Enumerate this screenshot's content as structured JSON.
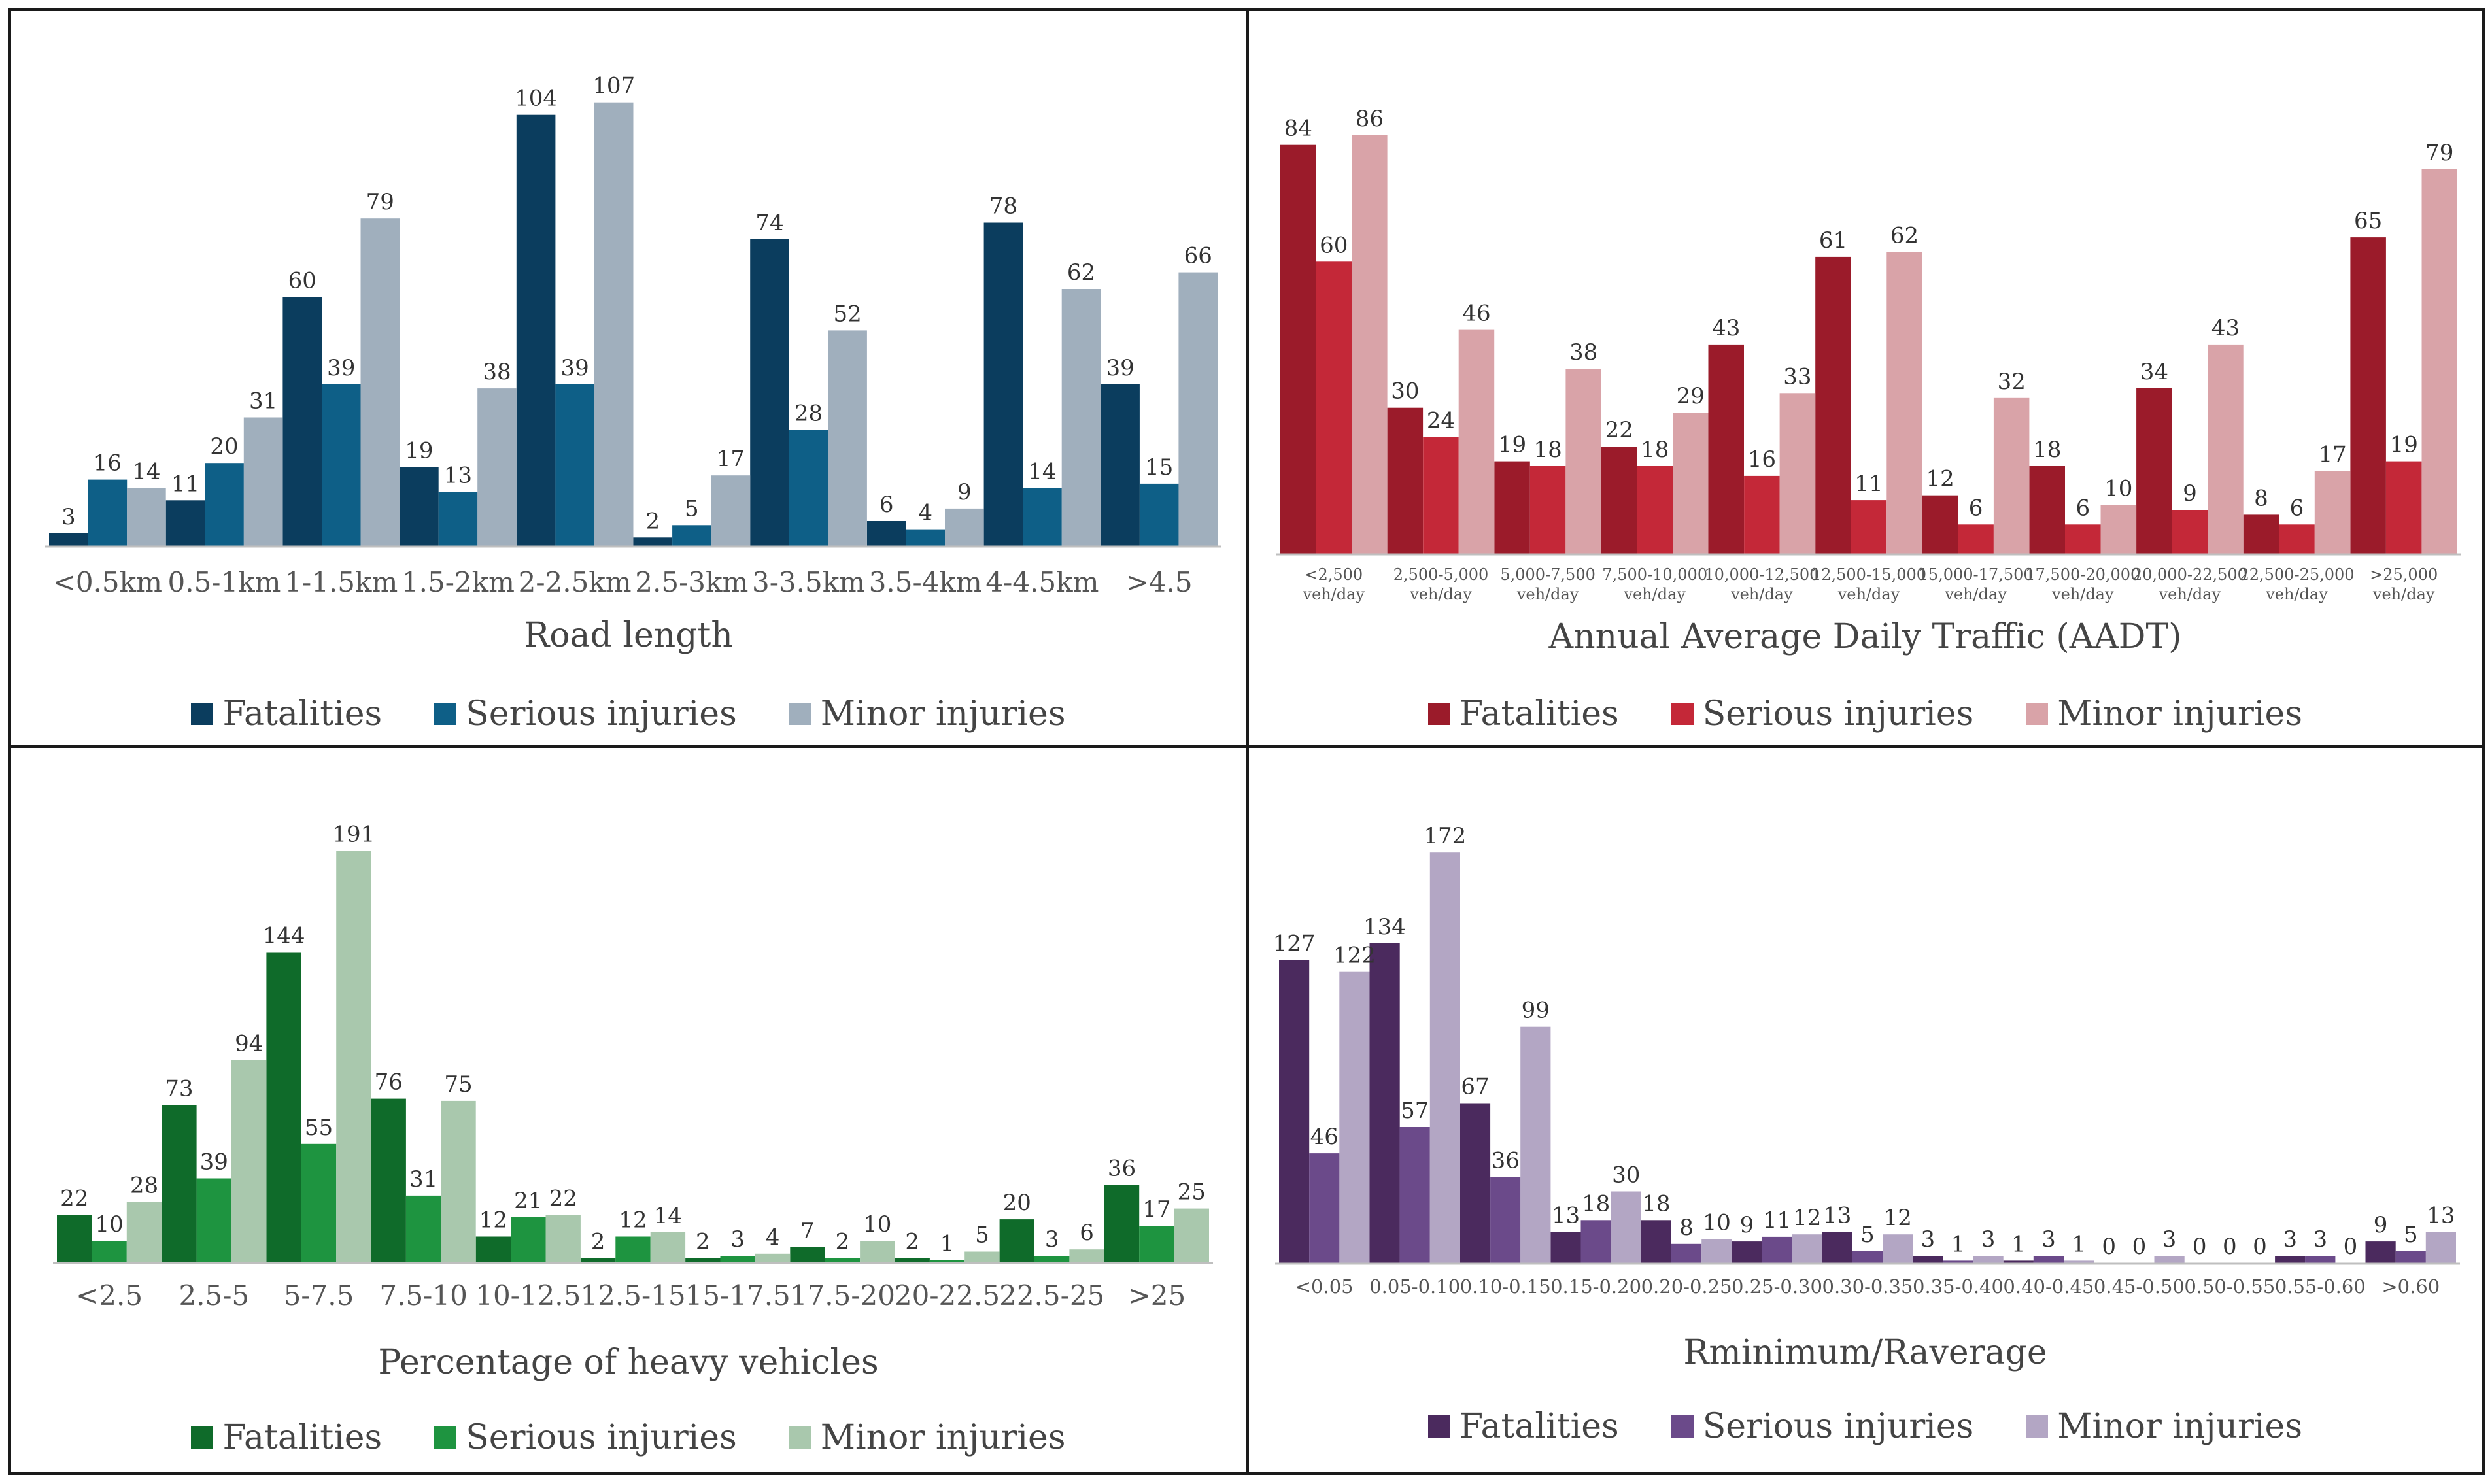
{
  "chart_data": [
    {
      "type": "bar",
      "xlabel": "Road length",
      "categories": [
        "<0.5km",
        "0.5-1km",
        "1-1.5km",
        "1.5-2km",
        "2-2.5km",
        "2.5-3km",
        "3-3.5km",
        "3.5-4km",
        "4-4.5km",
        ">4.5"
      ],
      "series": [
        {
          "name": "Fatalities",
          "color": "#0b3d5e",
          "values": [
            3,
            11,
            60,
            19,
            104,
            2,
            74,
            6,
            78,
            39
          ]
        },
        {
          "name": "Serious injuries",
          "color": "#0e5f87",
          "values": [
            16,
            20,
            39,
            13,
            39,
            5,
            28,
            4,
            14,
            15
          ]
        },
        {
          "name": "Minor injuries",
          "color": "#a0afbd",
          "values": [
            14,
            31,
            79,
            38,
            107,
            17,
            52,
            9,
            62,
            66
          ]
        }
      ],
      "ylim": [
        0,
        112
      ],
      "legend": "bottom"
    },
    {
      "type": "bar",
      "xlabel": "Annual Average Daily Traffic (AADT)",
      "categories": [
        [
          "<2,500",
          "veh/day"
        ],
        [
          "2,500-5,000",
          "veh/day"
        ],
        [
          "5,000-7,500",
          "veh/day"
        ],
        [
          "7,500-10,000",
          "veh/day"
        ],
        [
          "10,000-12,500",
          "veh/day"
        ],
        [
          "12,500-15,000",
          "veh/day"
        ],
        [
          "15,000-17,500",
          "veh/day"
        ],
        [
          "17,500-20,000",
          "veh/day"
        ],
        [
          "20,000-22,500",
          "veh/day"
        ],
        [
          "22,500-25,000",
          "veh/day"
        ],
        [
          ">25,000",
          "veh/day"
        ]
      ],
      "series": [
        {
          "name": "Fatalities",
          "color": "#9b1b2a",
          "values": [
            84,
            30,
            19,
            22,
            43,
            61,
            12,
            18,
            34,
            8,
            65
          ]
        },
        {
          "name": "Serious injuries",
          "color": "#c42838",
          "values": [
            60,
            24,
            18,
            18,
            16,
            11,
            6,
            6,
            9,
            6,
            19
          ]
        },
        {
          "name": "Minor injuries",
          "color": "#d9a3a8",
          "values": [
            86,
            46,
            38,
            29,
            33,
            62,
            32,
            10,
            43,
            17,
            79
          ]
        }
      ],
      "ylim": [
        0,
        90
      ],
      "legend": "bottom"
    },
    {
      "type": "bar",
      "xlabel": "Percentage of heavy vehicles",
      "categories": [
        "<2.5",
        "2.5-5",
        "5-7.5",
        "7.5-10",
        "10-12.5",
        "12.5-15",
        "15-17.5",
        "17.5-20",
        "20-22.5",
        "22.5-25",
        ">25"
      ],
      "series": [
        {
          "name": "Fatalities",
          "color": "#0f6b2a",
          "values": [
            22,
            73,
            144,
            76,
            12,
            2,
            2,
            7,
            2,
            20,
            36
          ]
        },
        {
          "name": "Serious injuries",
          "color": "#1e9440",
          "values": [
            10,
            39,
            55,
            31,
            21,
            12,
            3,
            2,
            1,
            3,
            17
          ]
        },
        {
          "name": "Minor injuries",
          "color": "#a9c8ad",
          "values": [
            28,
            94,
            191,
            75,
            22,
            14,
            4,
            10,
            5,
            6,
            25
          ]
        }
      ],
      "ylim": [
        0,
        200
      ],
      "legend": "bottom"
    },
    {
      "type": "bar",
      "xlabel": "Rminimum/Raverage",
      "categories": [
        "<0.05",
        "0.05-0.10",
        "0.10-0.15",
        "0.15-0.20",
        "0.20-0.25",
        "0.25-0.30",
        "0.30-0.35",
        "0.35-0.40",
        "0.40-0.45",
        "0.45-0.50",
        "0.50-0.55",
        "0.55-0.60",
        ">0.60"
      ],
      "series": [
        {
          "name": "Fatalities",
          "color": "#4b2a5e",
          "values": [
            127,
            134,
            67,
            13,
            18,
            9,
            13,
            3,
            1,
            0,
            0,
            3,
            9
          ]
        },
        {
          "name": "Serious injuries",
          "color": "#6b4a8a",
          "values": [
            46,
            57,
            36,
            18,
            8,
            11,
            5,
            1,
            3,
            0,
            0,
            3,
            5
          ]
        },
        {
          "name": "Minor injuries",
          "color": "#b3a6c4",
          "values": [
            122,
            172,
            99,
            30,
            10,
            12,
            12,
            3,
            1,
            3,
            0,
            0,
            13
          ]
        }
      ],
      "ylim": [
        0,
        180
      ],
      "legend": "bottom"
    }
  ]
}
